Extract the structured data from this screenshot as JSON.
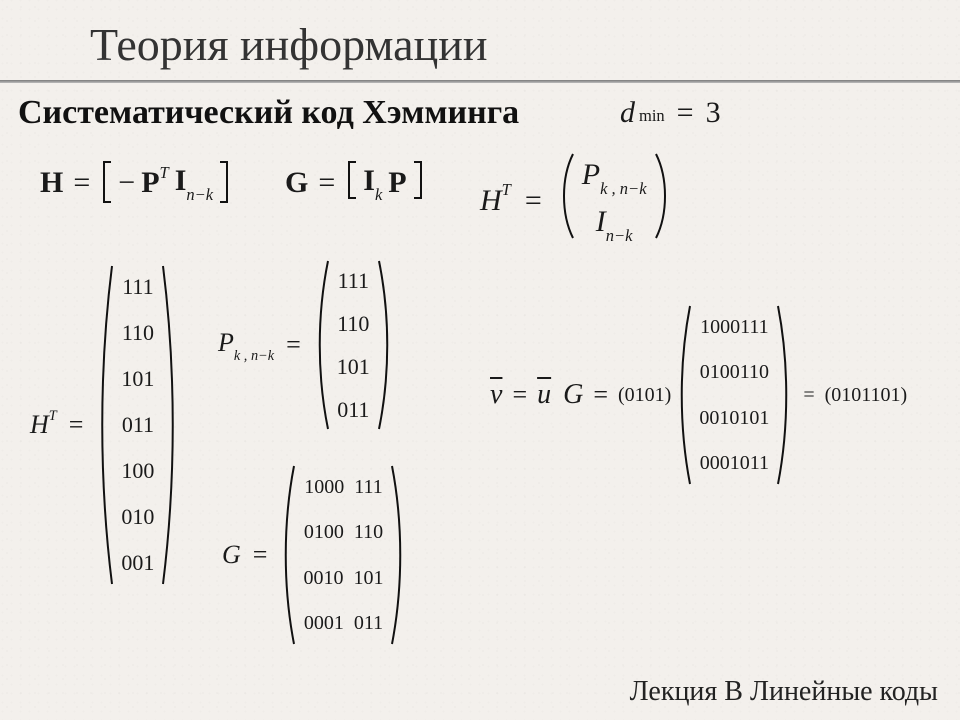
{
  "title": "Теория информации",
  "subtitle": "Систематический код Хэмминга",
  "footer": "Лекция B Линейные коды",
  "dmin": {
    "lhs_d": "d",
    "lhs_sub": "min",
    "eq": "=",
    "rhs": "3"
  },
  "H_eq": {
    "H": "H",
    "eq": "=",
    "minus": "−",
    "P": "P",
    "T": "T",
    "I": "I",
    "I_sub": "n−k"
  },
  "G_eq": {
    "G": "G",
    "eq": "=",
    "I": "I",
    "I_sub": "k",
    "P": "P"
  },
  "HT_block": {
    "H": "H",
    "T": "T",
    "eq": "=",
    "top_P": "P",
    "top_sub": "k , n−k",
    "bot_I": "I",
    "bot_sub": "n−k"
  },
  "HT_matrix": {
    "label_H": "H",
    "label_T": "T",
    "eq": "=",
    "rows": [
      "111",
      "110",
      "101",
      "011",
      "100",
      "010",
      "001"
    ]
  },
  "P_matrix": {
    "label_P": "P",
    "label_sub": "k , n−k",
    "eq": "=",
    "rows": [
      "111",
      "110",
      "101",
      "011"
    ]
  },
  "G_matrix": {
    "label": "G",
    "eq": "=",
    "rows": [
      "1000  111",
      "0100  110",
      "0010  101",
      "0001  011"
    ]
  },
  "vuG": {
    "v": "v",
    "eq1": "=",
    "u": "u",
    "G": "G",
    "eq2": "=",
    "u_vec": "(0101)",
    "rows": [
      "1000111",
      "0100110",
      "0010101",
      "0001011"
    ],
    "eq3": "=",
    "result": "(0101101)"
  },
  "colors": {
    "bg": "#f3f0ec",
    "text": "#1a1a1a",
    "rule": "#7a7a7a"
  }
}
